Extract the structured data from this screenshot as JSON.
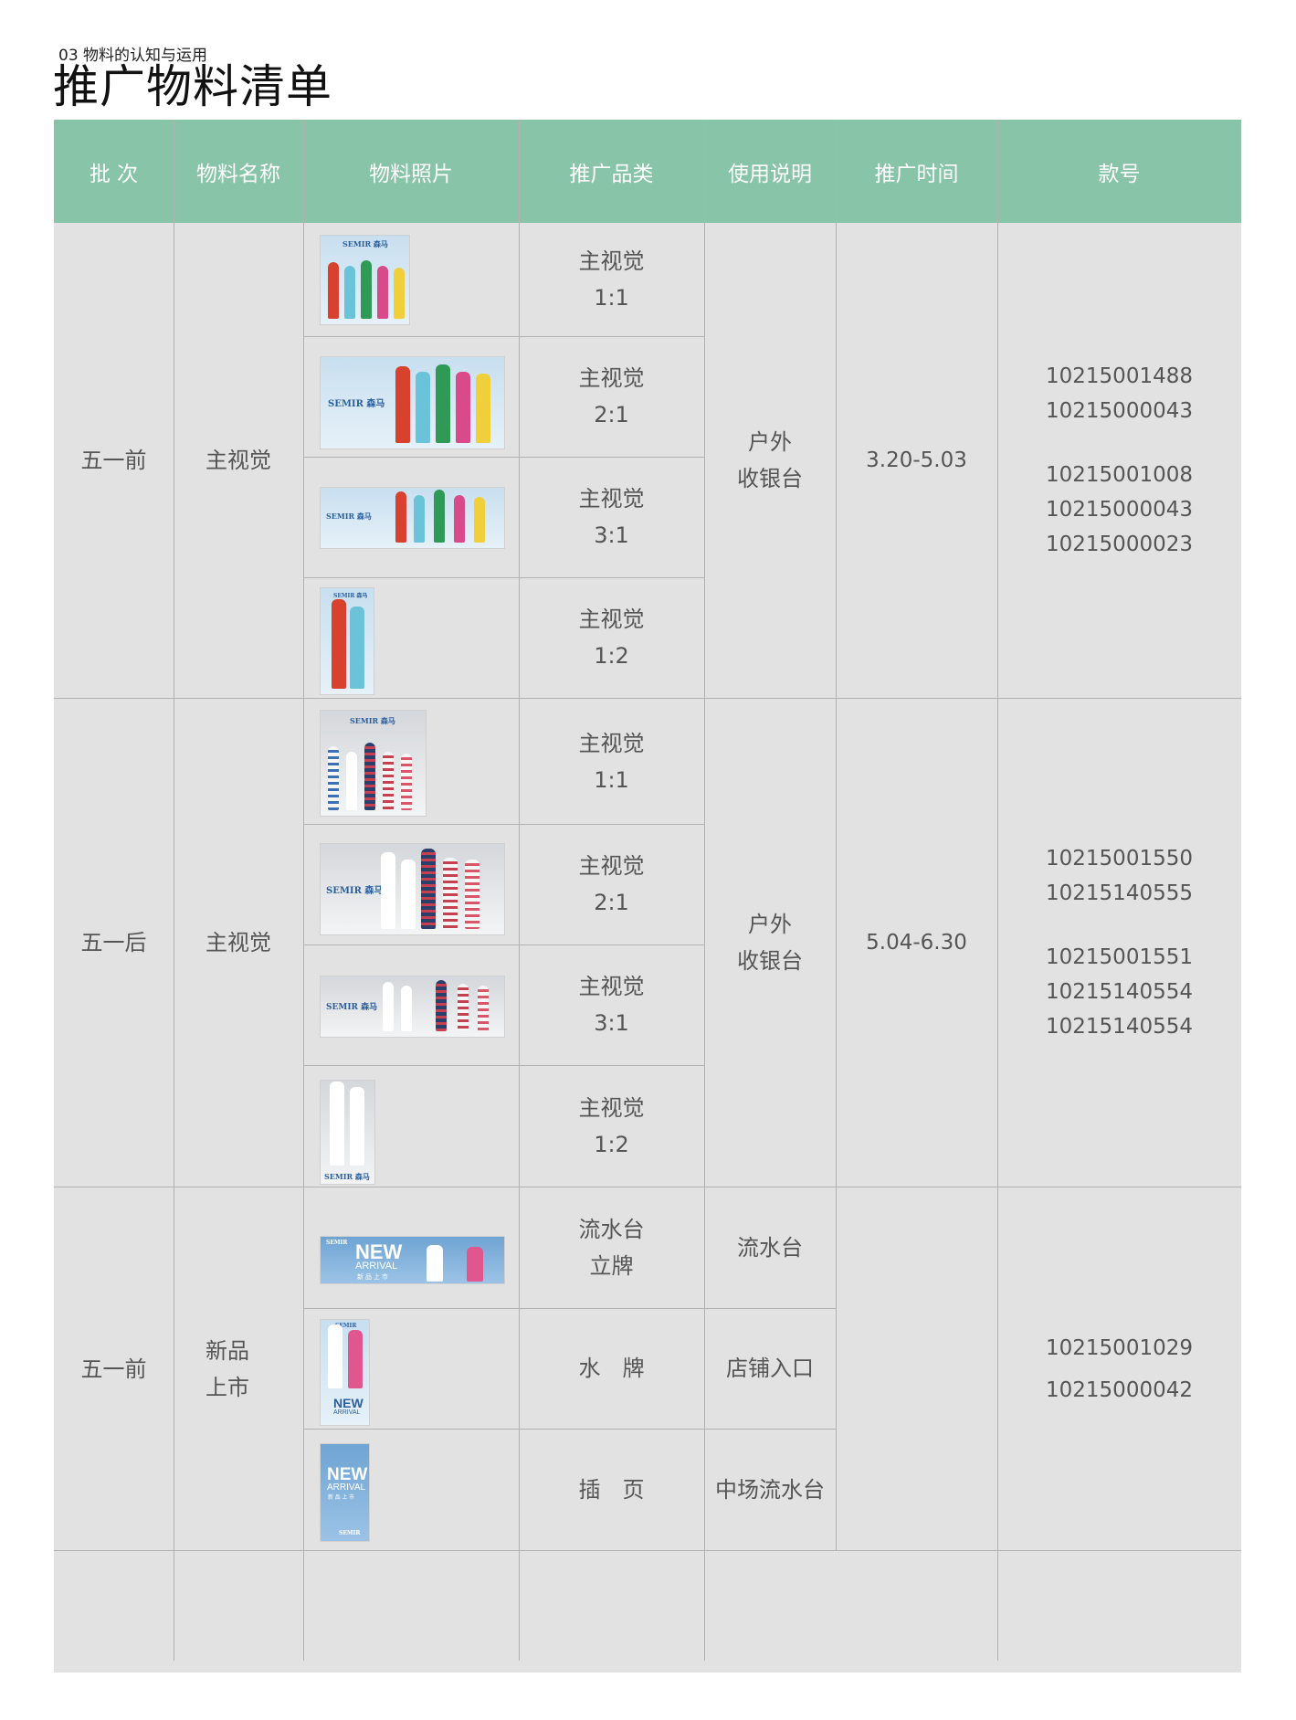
{
  "section": "03 物料的认知与运用",
  "title": "推广物料清单",
  "headers": [
    "批 次",
    "物料名称",
    "物料照片",
    "推广品类",
    "使用说明",
    "推广时间",
    "款号"
  ],
  "groups": [
    {
      "batch": "五一前",
      "material": "主视觉",
      "rows": [
        {
          "cat_l1": "主视觉",
          "cat_l2": "1:1",
          "photo_logo": "SEMIR 森马"
        },
        {
          "cat_l1": "主视觉",
          "cat_l2": "2:1",
          "photo_logo": "SEMIR 森马"
        },
        {
          "cat_l1": "主视觉",
          "cat_l2": "3:1",
          "photo_logo": "SEMIR 森马"
        },
        {
          "cat_l1": "主视觉",
          "cat_l2": "1:2",
          "photo_logo": "SEMIR 森马"
        }
      ],
      "usage_l1": "户外",
      "usage_l2": "收银台",
      "time": "3.20-5.03",
      "codes_a": [
        "10215001488",
        "10215000043"
      ],
      "codes_b": [
        "10215001008",
        "10215000043",
        "10215000023"
      ]
    },
    {
      "batch": "五一后",
      "material": "主视觉",
      "rows": [
        {
          "cat_l1": "主视觉",
          "cat_l2": "1:1",
          "photo_logo": "SEMIR 森马"
        },
        {
          "cat_l1": "主视觉",
          "cat_l2": "2:1",
          "photo_logo": "SEMIR 森马"
        },
        {
          "cat_l1": "主视觉",
          "cat_l2": "3:1",
          "photo_logo": "SEMIR 森马"
        },
        {
          "cat_l1": "主视觉",
          "cat_l2": "1:2",
          "photo_logo": "SEMIR 森马"
        }
      ],
      "usage_l1": "户外",
      "usage_l2": "收银台",
      "time": "5.04-6.30",
      "codes_a": [
        "10215001550",
        "10215140555"
      ],
      "codes_b": [
        "10215001551",
        "10215140554",
        "10215140554"
      ]
    },
    {
      "batch": "五一前",
      "material_l1": "新品",
      "material_l2": "上市",
      "rows": [
        {
          "cat_l1": "流水台",
          "cat_l2": "立牌",
          "usage": "流水台"
        },
        {
          "cat": "水　牌",
          "usage": "店铺入口"
        },
        {
          "cat": "插　页",
          "usage": "中场流水台"
        }
      ],
      "photo_new": "NEW",
      "photo_arrival": "ARRIVAL",
      "photo_sub": "新 品 上 市",
      "photo_logo": "SEMIR",
      "codes": [
        "10215001029",
        "10215000042"
      ]
    }
  ],
  "colors": {
    "header_bg": "#88c4a8",
    "body_bg": "#e2e2e3",
    "rule": "#b2b2b2",
    "text": "#555555"
  }
}
